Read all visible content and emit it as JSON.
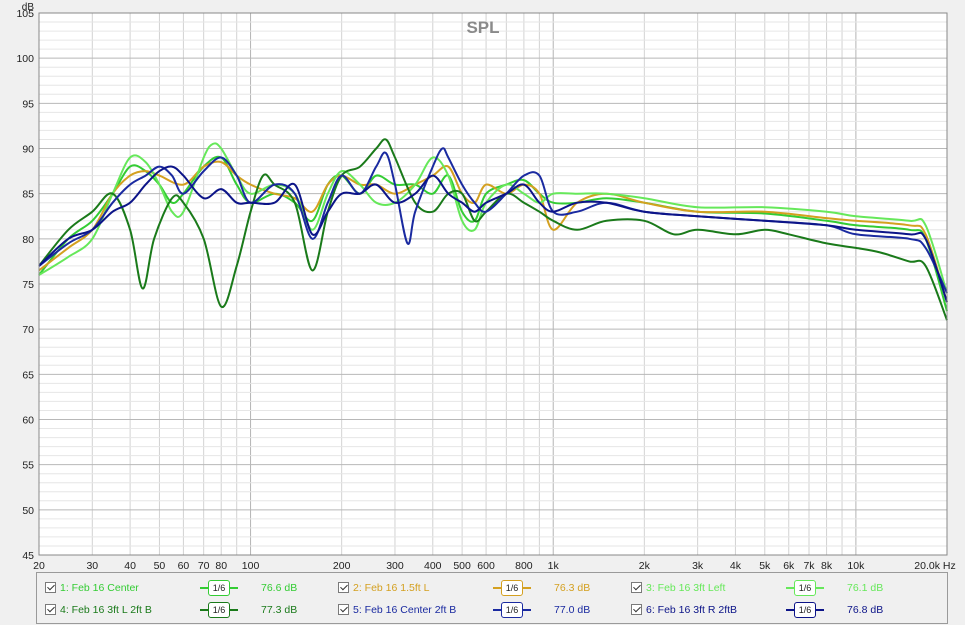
{
  "chart_data": {
    "type": "line",
    "title": "SPL",
    "ylabel": "dB",
    "xunit": "Hz",
    "xscale": "log",
    "xlim": [
      20,
      20000
    ],
    "ylim": [
      45,
      105
    ],
    "grid": true,
    "legend_position": "bottom",
    "yticks": [
      45,
      50,
      55,
      60,
      65,
      70,
      75,
      80,
      85,
      90,
      95,
      100,
      105
    ],
    "xticks": [
      {
        "v": 20,
        "label": "20"
      },
      {
        "v": 30,
        "label": "30"
      },
      {
        "v": 40,
        "label": "40"
      },
      {
        "v": 50,
        "label": "50"
      },
      {
        "v": 60,
        "label": "60"
      },
      {
        "v": 70,
        "label": "70"
      },
      {
        "v": 80,
        "label": "80"
      },
      {
        "v": 100,
        "label": "100"
      },
      {
        "v": 200,
        "label": "200"
      },
      {
        "v": 300,
        "label": "300"
      },
      {
        "v": 400,
        "label": "400"
      },
      {
        "v": 500,
        "label": "500"
      },
      {
        "v": 600,
        "label": "600"
      },
      {
        "v": 800,
        "label": "800"
      },
      {
        "v": 1000,
        "label": "1k"
      },
      {
        "v": 2000,
        "label": "2k"
      },
      {
        "v": 3000,
        "label": "3k"
      },
      {
        "v": 4000,
        "label": "4k"
      },
      {
        "v": 5000,
        "label": "5k"
      },
      {
        "v": 6000,
        "label": "6k"
      },
      {
        "v": 7000,
        "label": "7k"
      },
      {
        "v": 8000,
        "label": "8k"
      },
      {
        "v": 10000,
        "label": "10k"
      },
      {
        "v": 20000,
        "label": "20.0k Hz"
      }
    ],
    "series": [
      {
        "name": "1: Feb 16 Center",
        "smoothing": "1/6",
        "level": "76.6 dB",
        "color": "#33cc33",
        "points": [
          [
            20,
            76
          ],
          [
            25,
            80
          ],
          [
            30,
            82
          ],
          [
            35,
            85
          ],
          [
            40,
            88
          ],
          [
            45,
            87.5
          ],
          [
            50,
            86
          ],
          [
            55,
            84
          ],
          [
            60,
            85
          ],
          [
            70,
            88
          ],
          [
            80,
            89
          ],
          [
            90,
            86
          ],
          [
            100,
            84
          ],
          [
            120,
            85
          ],
          [
            140,
            84
          ],
          [
            160,
            82
          ],
          [
            180,
            86
          ],
          [
            200,
            87
          ],
          [
            230,
            85
          ],
          [
            260,
            87
          ],
          [
            300,
            86
          ],
          [
            350,
            86
          ],
          [
            400,
            85
          ],
          [
            450,
            87
          ],
          [
            500,
            83
          ],
          [
            550,
            82
          ],
          [
            600,
            85
          ],
          [
            700,
            86
          ],
          [
            800,
            86.5
          ],
          [
            900,
            85
          ],
          [
            1000,
            84
          ],
          [
            1200,
            84
          ],
          [
            1500,
            84.5
          ],
          [
            2000,
            84
          ],
          [
            3000,
            83
          ],
          [
            5000,
            82.8
          ],
          [
            8000,
            82
          ],
          [
            10000,
            81.5
          ],
          [
            15000,
            81
          ],
          [
            17000,
            80
          ],
          [
            20000,
            72
          ]
        ]
      },
      {
        "name": "2: Feb 16 1.5ft L",
        "smoothing": "1/6",
        "level": "76.3 dB",
        "color": "#d4a020",
        "points": [
          [
            20,
            76.5
          ],
          [
            25,
            79
          ],
          [
            30,
            81
          ],
          [
            35,
            85
          ],
          [
            40,
            87
          ],
          [
            45,
            87.5
          ],
          [
            50,
            87
          ],
          [
            60,
            86
          ],
          [
            70,
            88
          ],
          [
            80,
            88.5
          ],
          [
            90,
            87
          ],
          [
            100,
            86
          ],
          [
            120,
            85
          ],
          [
            140,
            84.5
          ],
          [
            160,
            83
          ],
          [
            180,
            86
          ],
          [
            200,
            87
          ],
          [
            230,
            86
          ],
          [
            260,
            86
          ],
          [
            300,
            85
          ],
          [
            350,
            86
          ],
          [
            400,
            87
          ],
          [
            450,
            88
          ],
          [
            500,
            85
          ],
          [
            550,
            84
          ],
          [
            600,
            86
          ],
          [
            700,
            85
          ],
          [
            800,
            86
          ],
          [
            900,
            85
          ],
          [
            1000,
            81
          ],
          [
            1200,
            84
          ],
          [
            1500,
            85
          ],
          [
            2000,
            84
          ],
          [
            3000,
            83
          ],
          [
            5000,
            83
          ],
          [
            8000,
            82.3
          ],
          [
            10000,
            82
          ],
          [
            15000,
            81.5
          ],
          [
            17000,
            80.5
          ],
          [
            20000,
            73
          ]
        ]
      },
      {
        "name": "3: Feb 16 3ft Left",
        "smoothing": "1/6",
        "level": "76.1 dB",
        "color": "#66e85a",
        "points": [
          [
            20,
            76
          ],
          [
            25,
            78
          ],
          [
            30,
            80
          ],
          [
            35,
            85
          ],
          [
            40,
            89
          ],
          [
            45,
            88.5
          ],
          [
            50,
            86
          ],
          [
            55,
            83
          ],
          [
            60,
            83
          ],
          [
            70,
            89
          ],
          [
            75,
            90.5
          ],
          [
            80,
            90
          ],
          [
            90,
            87
          ],
          [
            100,
            85
          ],
          [
            120,
            86
          ],
          [
            140,
            85
          ],
          [
            160,
            81
          ],
          [
            180,
            85
          ],
          [
            200,
            87.5
          ],
          [
            230,
            86
          ],
          [
            260,
            84
          ],
          [
            300,
            84
          ],
          [
            350,
            86
          ],
          [
            400,
            89
          ],
          [
            450,
            87
          ],
          [
            500,
            82
          ],
          [
            550,
            81
          ],
          [
            600,
            84
          ],
          [
            700,
            86
          ],
          [
            800,
            85
          ],
          [
            900,
            84
          ],
          [
            1000,
            85
          ],
          [
            1200,
            85
          ],
          [
            1500,
            85
          ],
          [
            2000,
            84.5
          ],
          [
            3000,
            83.5
          ],
          [
            5000,
            83.5
          ],
          [
            8000,
            83
          ],
          [
            10000,
            82.5
          ],
          [
            15000,
            82
          ],
          [
            17000,
            81.5
          ],
          [
            20000,
            74
          ]
        ]
      },
      {
        "name": "4: Feb 16 3ft L 2ft B",
        "smoothing": "1/6",
        "level": "77.3 dB",
        "color": "#1a7a1a",
        "points": [
          [
            20,
            77
          ],
          [
            25,
            81
          ],
          [
            30,
            83
          ],
          [
            35,
            85
          ],
          [
            40,
            81
          ],
          [
            44,
            74.5
          ],
          [
            48,
            80
          ],
          [
            55,
            84.5
          ],
          [
            60,
            84
          ],
          [
            70,
            80
          ],
          [
            80,
            72.5
          ],
          [
            90,
            77
          ],
          [
            100,
            83
          ],
          [
            110,
            87
          ],
          [
            120,
            86
          ],
          [
            140,
            84
          ],
          [
            160,
            76.5
          ],
          [
            180,
            83
          ],
          [
            200,
            87
          ],
          [
            230,
            88
          ],
          [
            260,
            90
          ],
          [
            280,
            91
          ],
          [
            300,
            89
          ],
          [
            350,
            84
          ],
          [
            400,
            83
          ],
          [
            450,
            85
          ],
          [
            500,
            85
          ],
          [
            550,
            82
          ],
          [
            600,
            83
          ],
          [
            700,
            85
          ],
          [
            800,
            84
          ],
          [
            900,
            83
          ],
          [
            1000,
            82
          ],
          [
            1200,
            81
          ],
          [
            1500,
            82
          ],
          [
            2000,
            82
          ],
          [
            2500,
            80.5
          ],
          [
            3000,
            81
          ],
          [
            4000,
            80.5
          ],
          [
            5000,
            81
          ],
          [
            6000,
            80.5
          ],
          [
            8000,
            79.5
          ],
          [
            10000,
            79
          ],
          [
            12000,
            78.5
          ],
          [
            15000,
            77.5
          ],
          [
            17000,
            77
          ],
          [
            20000,
            71
          ]
        ]
      },
      {
        "name": "5: Feb 16 Center 2ft B",
        "smoothing": "1/6",
        "level": "77.0 dB",
        "color": "#1a2aa0",
        "points": [
          [
            20,
            77
          ],
          [
            25,
            79.5
          ],
          [
            30,
            81
          ],
          [
            35,
            84
          ],
          [
            40,
            86
          ],
          [
            45,
            87
          ],
          [
            50,
            88
          ],
          [
            55,
            87
          ],
          [
            60,
            85
          ],
          [
            70,
            87.5
          ],
          [
            80,
            89
          ],
          [
            90,
            87
          ],
          [
            100,
            84
          ],
          [
            120,
            86
          ],
          [
            140,
            85
          ],
          [
            160,
            80
          ],
          [
            180,
            84
          ],
          [
            200,
            87
          ],
          [
            230,
            85
          ],
          [
            260,
            88
          ],
          [
            280,
            89.5
          ],
          [
            300,
            86
          ],
          [
            330,
            79.5
          ],
          [
            350,
            83
          ],
          [
            400,
            88
          ],
          [
            430,
            90
          ],
          [
            450,
            89
          ],
          [
            500,
            86
          ],
          [
            550,
            84
          ],
          [
            600,
            83
          ],
          [
            700,
            85
          ],
          [
            800,
            87
          ],
          [
            900,
            87
          ],
          [
            1000,
            83
          ],
          [
            1200,
            83
          ],
          [
            1500,
            84
          ],
          [
            2000,
            83
          ],
          [
            3000,
            82.5
          ],
          [
            5000,
            82
          ],
          [
            8000,
            81.5
          ],
          [
            10000,
            80.5
          ],
          [
            15000,
            80
          ],
          [
            17000,
            79
          ],
          [
            20000,
            74
          ]
        ]
      },
      {
        "name": "6: Feb 16 3ft R 2ftB",
        "smoothing": "1/6",
        "level": "76.8 dB",
        "color": "#0c1488",
        "points": [
          [
            20,
            77
          ],
          [
            25,
            80
          ],
          [
            30,
            81
          ],
          [
            35,
            83
          ],
          [
            40,
            84
          ],
          [
            45,
            86
          ],
          [
            50,
            87.5
          ],
          [
            55,
            88
          ],
          [
            60,
            87
          ],
          [
            70,
            84.5
          ],
          [
            80,
            85.5
          ],
          [
            90,
            84
          ],
          [
            100,
            84
          ],
          [
            120,
            84
          ],
          [
            140,
            86
          ],
          [
            160,
            80.5
          ],
          [
            180,
            83
          ],
          [
            200,
            85
          ],
          [
            230,
            85
          ],
          [
            260,
            86
          ],
          [
            300,
            84
          ],
          [
            350,
            85
          ],
          [
            400,
            87
          ],
          [
            450,
            85
          ],
          [
            500,
            84
          ],
          [
            550,
            83
          ],
          [
            600,
            84
          ],
          [
            700,
            85
          ],
          [
            800,
            86
          ],
          [
            900,
            84
          ],
          [
            1000,
            83
          ],
          [
            1200,
            84
          ],
          [
            1500,
            84
          ],
          [
            2000,
            83
          ],
          [
            3000,
            82.5
          ],
          [
            5000,
            82
          ],
          [
            8000,
            81.5
          ],
          [
            10000,
            81
          ],
          [
            15000,
            80.5
          ],
          [
            17000,
            80
          ],
          [
            20000,
            73
          ]
        ]
      }
    ]
  }
}
